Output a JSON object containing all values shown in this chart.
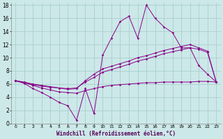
{
  "xlabel": "Windchill (Refroidissement éolien,°C)",
  "bg_color": "#cce8e8",
  "line_color": "#880088",
  "grid_color": "#aacece",
  "x": [
    0,
    1,
    2,
    3,
    4,
    5,
    6,
    7,
    8,
    9,
    10,
    11,
    12,
    13,
    14,
    15,
    16,
    17,
    18,
    19,
    20,
    21,
    22,
    23
  ],
  "line1": [
    6.5,
    6.1,
    5.3,
    4.7,
    4.0,
    3.2,
    2.7,
    0.5,
    5.3,
    1.5,
    10.4,
    13.0,
    15.5,
    16.3,
    13.0,
    18.0,
    16.0,
    14.7,
    13.8,
    11.5,
    11.5,
    8.8,
    7.5,
    6.3
  ],
  "line2": [
    6.5,
    6.3,
    6.0,
    5.8,
    5.6,
    5.4,
    5.3,
    5.4,
    6.3,
    7.0,
    7.8,
    8.2,
    8.6,
    9.0,
    9.5,
    9.8,
    10.2,
    10.6,
    10.9,
    11.2,
    11.5,
    11.3,
    10.8,
    6.3
  ],
  "line3": [
    6.5,
    6.2,
    5.9,
    5.7,
    5.5,
    5.4,
    5.2,
    5.3,
    6.5,
    7.5,
    8.3,
    8.7,
    9.1,
    9.5,
    10.0,
    10.3,
    10.7,
    11.1,
    11.4,
    11.7,
    12.0,
    11.5,
    11.0,
    6.3
  ],
  "line4": [
    6.5,
    6.2,
    5.8,
    5.4,
    5.1,
    4.8,
    4.7,
    4.6,
    5.0,
    5.3,
    5.6,
    5.8,
    5.9,
    6.0,
    6.1,
    6.2,
    6.2,
    6.3,
    6.3,
    6.3,
    6.3,
    6.4,
    6.4,
    6.3
  ],
  "ylim": [
    0,
    18
  ],
  "xlim": [
    0,
    23
  ],
  "xtick_fontsize": 4.5,
  "ytick_fontsize": 5.5,
  "xlabel_fontsize": 5.5
}
